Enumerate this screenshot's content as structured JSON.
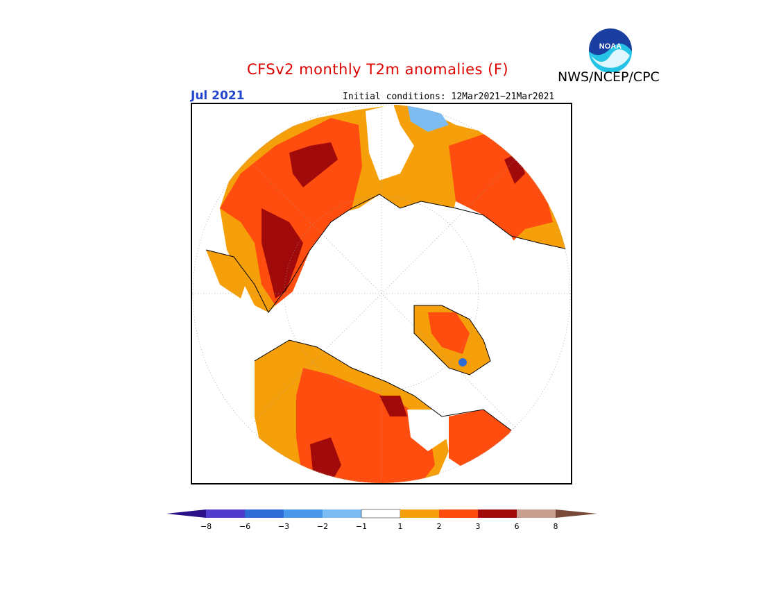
{
  "header": {
    "title": "CFSv2 monthly T2m anomalies (F)",
    "title_color": "#dd0000",
    "agency": "NWS/NCEP/CPC",
    "month": "Jul 2021",
    "month_color": "#2244cc",
    "initial_conditions": "Initial conditions: 12Mar2021−21Mar2021",
    "logo_text": "NOAA"
  },
  "legend": {
    "ticks": [
      "−8",
      "−6",
      "−3",
      "−2",
      "−1",
      "1",
      "2",
      "3",
      "6",
      "8"
    ],
    "colors": {
      "below_-8": "#2a1188",
      "-8_-6": "#4f3ccc",
      "-6_-3": "#2f6bd6",
      "-3_-2": "#4a98ea",
      "-2_-1": "#7cbcf2",
      "-1_1": "#ffffff",
      "1_2": "#f5a00a",
      "2_3": "#ff4d0f",
      "3_6": "#a00a0a",
      "6_8": "#c9a090",
      "above_8": "#7a4a38"
    }
  },
  "map": {
    "projection": "north-polar-stereographic",
    "coastline_color": "#000000",
    "graticule": "dotted"
  }
}
